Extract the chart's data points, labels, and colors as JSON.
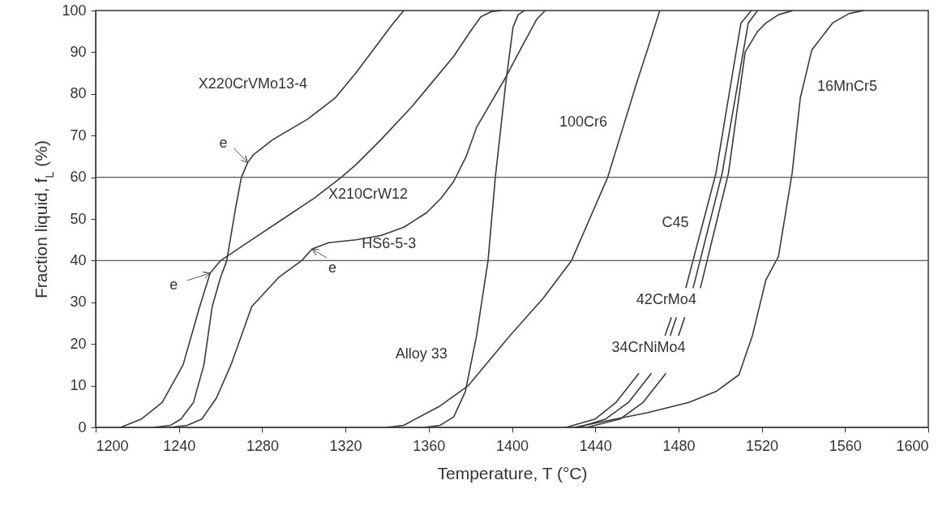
{
  "chart_data": {
    "type": "line",
    "xlabel": "Temperature, T (°C)",
    "ylabel": "Fraction liquid, f$_{L}$ (%)",
    "xlim": [
      1200,
      1600
    ],
    "xticks": [
      1200,
      1240,
      1280,
      1320,
      1360,
      1400,
      1440,
      1480,
      1520,
      1560,
      1600
    ],
    "ylim": [
      0,
      100
    ],
    "yticks": [
      0,
      10,
      20,
      30,
      40,
      50,
      60,
      70,
      80,
      90,
      100
    ],
    "grid": false,
    "series": [
      {
        "name": "X210CrW12",
        "color": "#3a3a3a",
        "x": [
          1212,
          1222,
          1232,
          1242,
          1250,
          1255,
          1260,
          1275,
          1290,
          1305,
          1318,
          1325,
          1337,
          1352,
          1362,
          1372,
          1380,
          1385,
          1390,
          1395
        ],
        "values": [
          0,
          2,
          6,
          15,
          29,
          37,
          40,
          45,
          50,
          55,
          60,
          63,
          69,
          77,
          83,
          89,
          95,
          98.5,
          99.7,
          100
        ]
      },
      {
        "name": "X220CrVMo13-4",
        "color": "#3a3a3a",
        "x": [
          1228,
          1236,
          1241,
          1247,
          1252,
          1256,
          1260,
          1263,
          1267,
          1270,
          1273,
          1276,
          1285,
          1302,
          1315,
          1325,
          1337,
          1343,
          1348
        ],
        "values": [
          0,
          0.5,
          2,
          6,
          15,
          29,
          36,
          40,
          52,
          60,
          63.5,
          65.5,
          69,
          74,
          79,
          85,
          93,
          97,
          100
        ]
      },
      {
        "name": "HS6-5-3",
        "color": "#3a3a3a",
        "x": [
          1236,
          1244,
          1251,
          1258,
          1265,
          1275,
          1288,
          1299,
          1304,
          1312,
          1325,
          1337,
          1348,
          1359,
          1366,
          1372,
          1378,
          1383,
          1390,
          1397,
          1406,
          1412,
          1416
        ],
        "values": [
          0,
          0.5,
          2,
          7,
          15,
          29,
          36,
          40,
          42.8,
          44.3,
          45,
          46,
          48,
          51.5,
          55,
          59,
          65,
          72,
          78,
          84,
          92.5,
          98,
          100
        ]
      },
      {
        "name": "Alloy 33",
        "color": "#3a3a3a",
        "x": [
          1358,
          1365.5,
          1372,
          1377.6,
          1383,
          1388.5,
          1392,
          1397,
          1400.5,
          1403,
          1406
        ],
        "values": [
          0,
          0.5,
          2.5,
          8.6,
          22,
          40,
          60,
          82.5,
          96,
          99,
          100
        ]
      },
      {
        "name": "100Cr6",
        "color": "#3a3a3a",
        "x": [
          1340,
          1348,
          1365,
          1379,
          1399,
          1415,
          1428.6,
          1446,
          1459.8,
          1466,
          1471
        ],
        "values": [
          0,
          0.5,
          5,
          10,
          22,
          31,
          40,
          60,
          82.5,
          92,
          100
        ]
      },
      {
        "name": "C45",
        "color": "#3a3a3a",
        "x": [
          1426,
          1440,
          1450,
          1461,
          1467,
          1473.5,
          1476.6,
          1480,
          1483.5,
          1498,
          1510,
          1515
        ],
        "values": [
          0,
          2,
          6,
          13,
          null,
          22,
          26.4,
          null,
          33.4,
          61,
          97,
          100
        ]
      },
      {
        "name": "42CrMo4",
        "color": "#3a3a3a",
        "x": [
          1432,
          1445,
          1456,
          1467,
          1471,
          1476,
          1479,
          1482,
          1487,
          1501,
          1513.5,
          1518
        ],
        "values": [
          0,
          2,
          6,
          13,
          null,
          22,
          26.4,
          null,
          33.4,
          61,
          97,
          100
        ]
      },
      {
        "name": "34CrNiMo4",
        "color": "#3a3a3a",
        "x": [
          1436,
          1452,
          1463,
          1474,
          1477,
          1480,
          1483,
          1486,
          1490.5,
          1504,
          1512,
          1518,
          1522,
          1528,
          1535
        ],
        "values": [
          0,
          2,
          6,
          13,
          null,
          22,
          26.4,
          null,
          33.4,
          61,
          90,
          95,
          97,
          99,
          100
        ]
      },
      {
        "name": "16MnCr5",
        "color": "#3a3a3a",
        "x": [
          1430,
          1445,
          1465,
          1485,
          1498,
          1509,
          1515.5,
          1522,
          1528,
          1534.6,
          1538.5,
          1544,
          1554,
          1562,
          1569
        ],
        "values": [
          0,
          1.5,
          3.5,
          6,
          8.6,
          12.6,
          22,
          35.4,
          41,
          61,
          79,
          90.5,
          97,
          99.3,
          100
        ]
      }
    ],
    "ref_lines": [
      {
        "axis": "y",
        "value": 40,
        "color": "#555555"
      },
      {
        "axis": "y",
        "value": 60,
        "color": "#555555"
      }
    ],
    "annotations": [
      {
        "text": "e",
        "x": 1273,
        "y": 63.5
      },
      {
        "text": "e",
        "x": 1255,
        "y": 37
      },
      {
        "text": "e",
        "x": 1304,
        "y": 42.8
      }
    ]
  }
}
